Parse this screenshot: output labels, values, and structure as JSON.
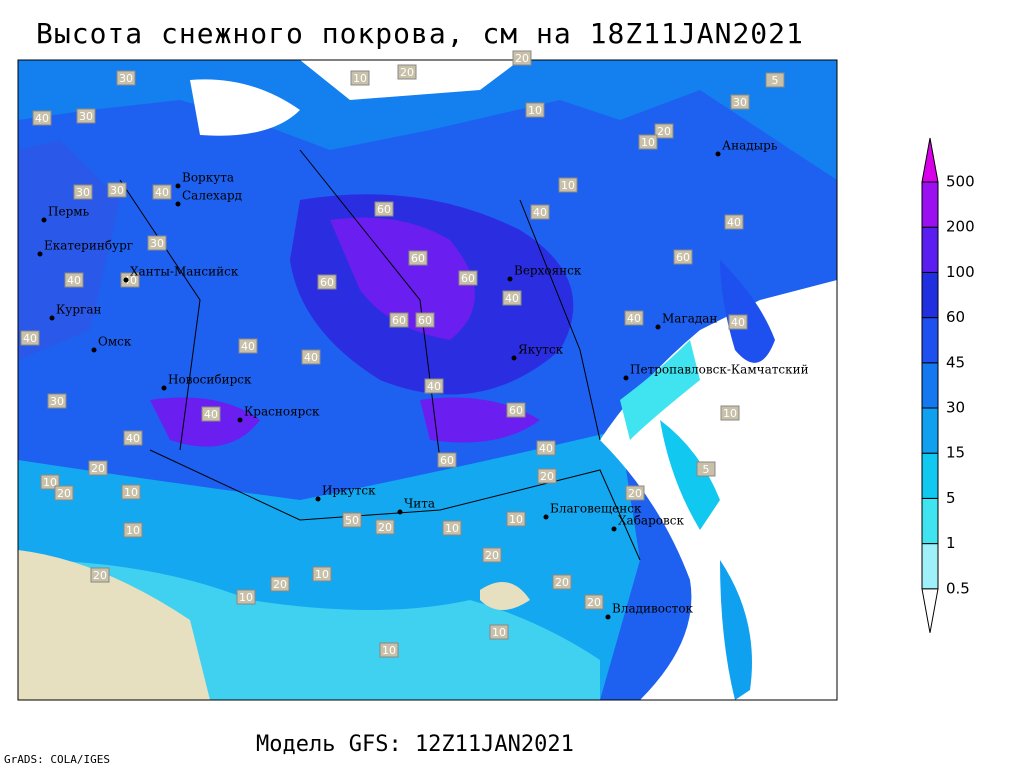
{
  "title": "Высота снежного покрова, см на 18Z11JAN2021",
  "subtitle": "Модель GFS: 12Z11JAN2021",
  "credit": "GrADS: COLA/IGES",
  "legend": {
    "levels": [
      0.5,
      1,
      5,
      15,
      30,
      45,
      60,
      100,
      200,
      500
    ],
    "colors": [
      "#ffffff",
      "#a0f0fa",
      "#40e4f0",
      "#10c8f0",
      "#10a0f0",
      "#1478f0",
      "#1e50f0",
      "#2030e0",
      "#5a1ef0",
      "#9a10f0",
      "#d800e8"
    ]
  },
  "cities": [
    "Пермь",
    "Екатеринбург",
    "Воркута",
    "Салехард",
    "Ханты-Мансийск",
    "Курган",
    "Омск",
    "Новосибирск",
    "Красноярск",
    "Иркутск",
    "Чита",
    "Верхоянск",
    "Якутск",
    "Магадан",
    "Анадырь",
    "Петропавловск-Камчатский",
    "Благовещенск",
    "Хабаровск",
    "Владивосток"
  ],
  "contour_labels": [
    30,
    20,
    10,
    20,
    10,
    40,
    30,
    10,
    30,
    30,
    40,
    60,
    40,
    30,
    40,
    40,
    60,
    60,
    60,
    60,
    40,
    60,
    60,
    40,
    40,
    40,
    40,
    30,
    40,
    40,
    60,
    40,
    40,
    60,
    20,
    10,
    20,
    10,
    50,
    20,
    10,
    10,
    20,
    20,
    20,
    20,
    10,
    20,
    10,
    20,
    10,
    10,
    10,
    20,
    5,
    10,
    40,
    40,
    5,
    30,
    20,
    10
  ]
}
